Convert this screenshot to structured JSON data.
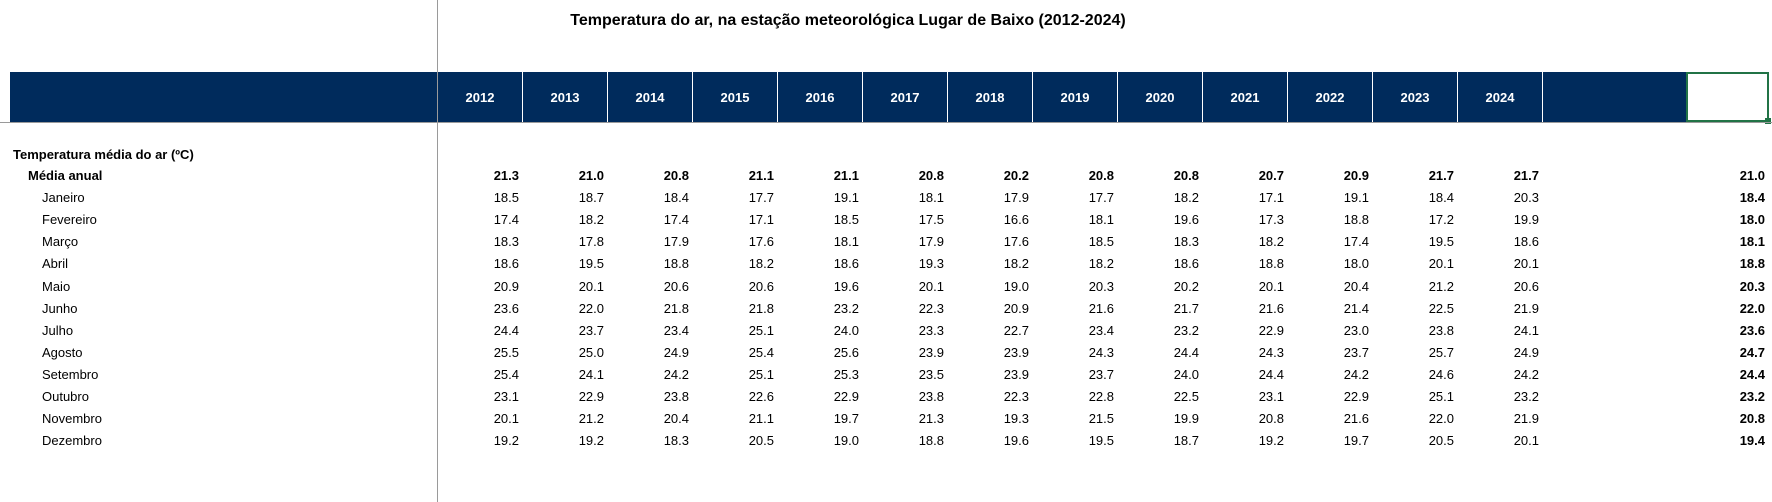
{
  "title": "Temperatura do ar, na estação meteorológica Lugar de Baixo (2012-2024)",
  "years": [
    "2012",
    "2013",
    "2014",
    "2015",
    "2016",
    "2017",
    "2018",
    "2019",
    "2020",
    "2021",
    "2022",
    "2023",
    "2024"
  ],
  "section_label": "Temperatura média do ar (ºC)",
  "colors": {
    "header_bg": "#002b5c",
    "header_text": "#ffffff",
    "selection": "#217346"
  },
  "rows": [
    {
      "label": "Média anual",
      "type": "annual",
      "values": [
        "21.3",
        "21.0",
        "20.8",
        "21.1",
        "21.1",
        "20.8",
        "20.2",
        "20.8",
        "20.8",
        "20.7",
        "20.9",
        "21.7",
        "21.7"
      ],
      "avg": "21.0"
    },
    {
      "label": "Janeiro",
      "type": "month",
      "values": [
        "18.5",
        "18.7",
        "18.4",
        "17.7",
        "19.1",
        "18.1",
        "17.9",
        "17.7",
        "18.2",
        "17.1",
        "19.1",
        "18.4",
        "20.3"
      ],
      "avg": "18.4"
    },
    {
      "label": "Fevereiro",
      "type": "month",
      "values": [
        "17.4",
        "18.2",
        "17.4",
        "17.1",
        "18.5",
        "17.5",
        "16.6",
        "18.1",
        "19.6",
        "17.3",
        "18.8",
        "17.2",
        "19.9"
      ],
      "avg": "18.0"
    },
    {
      "label": "Março",
      "type": "month",
      "values": [
        "18.3",
        "17.8",
        "17.9",
        "17.6",
        "18.1",
        "17.9",
        "17.6",
        "18.5",
        "18.3",
        "18.2",
        "17.4",
        "19.5",
        "18.6"
      ],
      "avg": "18.1"
    },
    {
      "label": "Abril",
      "type": "month",
      "values": [
        "18.6",
        "19.5",
        "18.8",
        "18.2",
        "18.6",
        "19.3",
        "18.2",
        "18.2",
        "18.6",
        "18.8",
        "18.0",
        "20.1",
        "20.1"
      ],
      "avg": "18.8"
    },
    {
      "label": "Maio",
      "type": "month",
      "values": [
        "20.9",
        "20.1",
        "20.6",
        "20.6",
        "19.6",
        "20.1",
        "19.0",
        "20.3",
        "20.2",
        "20.1",
        "20.4",
        "21.2",
        "20.6"
      ],
      "avg": "20.3"
    },
    {
      "label": "Junho",
      "type": "month",
      "values": [
        "23.6",
        "22.0",
        "21.8",
        "21.8",
        "23.2",
        "22.3",
        "20.9",
        "21.6",
        "21.7",
        "21.6",
        "21.4",
        "22.5",
        "21.9"
      ],
      "avg": "22.0"
    },
    {
      "label": "Julho",
      "type": "month",
      "values": [
        "24.4",
        "23.7",
        "23.4",
        "25.1",
        "24.0",
        "23.3",
        "22.7",
        "23.4",
        "23.2",
        "22.9",
        "23.0",
        "23.8",
        "24.1"
      ],
      "avg": "23.6"
    },
    {
      "label": "Agosto",
      "type": "month",
      "values": [
        "25.5",
        "25.0",
        "24.9",
        "25.4",
        "25.6",
        "23.9",
        "23.9",
        "24.3",
        "24.4",
        "24.3",
        "23.7",
        "25.7",
        "24.9"
      ],
      "avg": "24.7"
    },
    {
      "label": "Setembro",
      "type": "month",
      "values": [
        "25.4",
        "24.1",
        "24.2",
        "25.1",
        "25.3",
        "23.5",
        "23.9",
        "23.7",
        "24.0",
        "24.4",
        "24.2",
        "24.6",
        "24.2"
      ],
      "avg": "24.4"
    },
    {
      "label": "Outubro",
      "type": "month",
      "values": [
        "23.1",
        "22.9",
        "23.8",
        "22.6",
        "22.9",
        "23.8",
        "22.3",
        "22.8",
        "22.5",
        "23.1",
        "22.9",
        "25.1",
        "23.2"
      ],
      "avg": "23.2"
    },
    {
      "label": "Novembro",
      "type": "month",
      "values": [
        "20.1",
        "21.2",
        "20.4",
        "21.1",
        "19.7",
        "21.3",
        "19.3",
        "21.5",
        "19.9",
        "20.8",
        "21.6",
        "22.0",
        "21.9"
      ],
      "avg": "20.8"
    },
    {
      "label": "Dezembro",
      "type": "month",
      "values": [
        "19.2",
        "19.2",
        "18.3",
        "20.5",
        "19.0",
        "18.8",
        "19.6",
        "19.5",
        "18.7",
        "19.2",
        "19.7",
        "20.5",
        "20.1"
      ],
      "avg": "19.4"
    }
  ]
}
